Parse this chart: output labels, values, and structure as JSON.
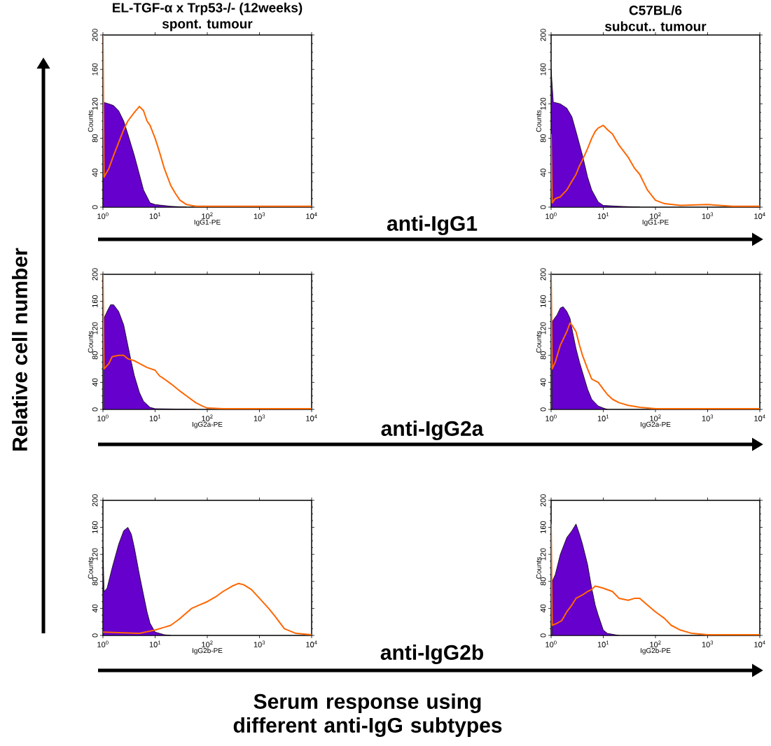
{
  "chart_data": [
    {
      "type": "line",
      "title": "EL-TGF-α x Trp53-/- (12weeks)",
      "subtitle": "spont. tumour",
      "xlabel": "IgG1-PE",
      "ylabel": "Counts",
      "log": "x",
      "xlim": [
        1,
        10000
      ],
      "ylim": [
        0,
        200
      ],
      "xticks": [
        {
          "value": 1,
          "label": "10$^{0}$"
        },
        {
          "value": 10,
          "label": "10$^{1}$"
        },
        {
          "value": 100,
          "label": "10$^{2}$"
        },
        {
          "value": 1000,
          "label": "10$^{3}$"
        },
        {
          "value": 10000,
          "label": "10$^{4}$"
        }
      ],
      "yticks": [
        0,
        40,
        80,
        120,
        160,
        200
      ],
      "marker": "none",
      "series": [
        {
          "type": "area",
          "color": "#6600cc",
          "x": [
            1,
            1.3,
            1.6,
            2,
            2.5,
            3,
            4,
            5,
            6,
            8,
            10,
            20,
            40
          ],
          "values": [
            122,
            120,
            118,
            112,
            100,
            85,
            60,
            38,
            20,
            5,
            3,
            1,
            0
          ]
        },
        {
          "type": "line",
          "color": "#ff6600",
          "x": [
            1,
            1.05,
            1.3,
            1.6,
            2,
            2.5,
            3,
            4,
            5,
            6,
            7,
            8,
            10,
            12,
            15,
            20,
            25,
            30,
            40,
            60,
            100,
            10000
          ],
          "values": [
            200,
            35,
            45,
            60,
            75,
            90,
            100,
            110,
            117,
            112,
            100,
            95,
            80,
            65,
            45,
            25,
            15,
            8,
            3,
            1,
            1,
            1
          ]
        }
      ]
    },
    {
      "type": "line",
      "title": "C57BL/6",
      "subtitle": "subcut.. tumour",
      "xlabel": "IgG1-PE",
      "ylabel": "Counts",
      "log": "x",
      "xlim": [
        1,
        10000
      ],
      "ylim": [
        0,
        200
      ],
      "xticks": [
        {
          "value": 1,
          "label": "10$^{0}$"
        },
        {
          "value": 10,
          "label": "10$^{1}$"
        },
        {
          "value": 100,
          "label": "10$^{2}$"
        },
        {
          "value": 1000,
          "label": "10$^{3}$"
        },
        {
          "value": 10000,
          "label": "10$^{4}$"
        }
      ],
      "yticks": [
        0,
        40,
        80,
        120,
        160,
        200
      ],
      "marker": "none",
      "series": [
        {
          "type": "area",
          "color": "#6600cc",
          "x": [
            1,
            1.1,
            1.5,
            2,
            2.5,
            3,
            4,
            5,
            6,
            8,
            10,
            20,
            50
          ],
          "values": [
            160,
            122,
            120,
            115,
            105,
            88,
            60,
            35,
            20,
            6,
            2,
            1,
            0
          ]
        },
        {
          "type": "line",
          "color": "#ff6600",
          "x": [
            1,
            1.05,
            1.2,
            1.5,
            2,
            2.5,
            3,
            3.5,
            4,
            5,
            6,
            7,
            8,
            10,
            12,
            15,
            20,
            30,
            40,
            50,
            70,
            100,
            150,
            300,
            1000,
            3000,
            10000
          ],
          "values": [
            85,
            5,
            10,
            12,
            20,
            30,
            38,
            48,
            55,
            68,
            80,
            88,
            92,
            95,
            90,
            85,
            72,
            58,
            45,
            38,
            20,
            8,
            4,
            2,
            3,
            1,
            1
          ]
        }
      ]
    },
    {
      "type": "line",
      "xlabel": "IgG2a-PE",
      "ylabel": "Counts",
      "log": "x",
      "xlim": [
        1,
        10000
      ],
      "ylim": [
        0,
        200
      ],
      "xticks": [
        {
          "value": 1,
          "label": "10$^{0}$"
        },
        {
          "value": 10,
          "label": "10$^{1}$"
        },
        {
          "value": 100,
          "label": "10$^{2}$"
        },
        {
          "value": 1000,
          "label": "10$^{3}$"
        },
        {
          "value": 10000,
          "label": "10$^{4}$"
        }
      ],
      "yticks": [
        0,
        40,
        80,
        120,
        160,
        200
      ],
      "marker": "none",
      "series": [
        {
          "type": "area",
          "color": "#6600cc",
          "x": [
            1.05,
            1.2,
            1.4,
            1.6,
            2,
            2.5,
            3,
            3.5,
            4,
            5,
            6,
            8,
            10,
            60
          ],
          "values": [
            135,
            145,
            155,
            155,
            145,
            125,
            95,
            70,
            50,
            25,
            12,
            3,
            1,
            0
          ]
        },
        {
          "type": "line",
          "color": "#ff6600",
          "x": [
            1,
            1.05,
            1.3,
            1.5,
            2,
            2.5,
            3,
            4,
            5,
            7,
            10,
            12,
            15,
            20,
            30,
            40,
            60,
            80,
            100,
            200,
            10000
          ],
          "values": [
            200,
            60,
            68,
            78,
            80,
            80,
            75,
            72,
            68,
            62,
            58,
            50,
            45,
            38,
            27,
            20,
            10,
            5,
            2,
            1,
            1
          ]
        }
      ]
    },
    {
      "type": "line",
      "xlabel": "IgG2a-PE",
      "ylabel": "Counts",
      "log": "x",
      "xlim": [
        1,
        10000
      ],
      "ylim": [
        0,
        200
      ],
      "xticks": [
        {
          "value": 1,
          "label": "10$^{0}$"
        },
        {
          "value": 10,
          "label": "10$^{1}$"
        },
        {
          "value": 100,
          "label": "10$^{2}$"
        },
        {
          "value": 1000,
          "label": "10$^{3}$"
        },
        {
          "value": 10000,
          "label": "10$^{4}$"
        }
      ],
      "yticks": [
        0,
        40,
        80,
        120,
        160,
        200
      ],
      "marker": "none",
      "series": [
        {
          "type": "area",
          "color": "#6600cc",
          "x": [
            1.05,
            1.3,
            1.5,
            1.7,
            2,
            2.3,
            2.5,
            3,
            3.5,
            4,
            5,
            6,
            8,
            10,
            12
          ],
          "values": [
            130,
            140,
            150,
            152,
            145,
            135,
            120,
            90,
            70,
            55,
            30,
            15,
            5,
            2,
            0
          ]
        },
        {
          "type": "line",
          "color": "#ff6600",
          "x": [
            1,
            1.05,
            1.2,
            1.5,
            2,
            2.3,
            2.5,
            3,
            3.5,
            4,
            5,
            6,
            8,
            10,
            12,
            15,
            20,
            30,
            50,
            100,
            200,
            10000
          ],
          "values": [
            200,
            60,
            70,
            95,
            115,
            128,
            125,
            115,
            95,
            80,
            60,
            45,
            40,
            30,
            22,
            15,
            10,
            6,
            3,
            1,
            1,
            1
          ]
        }
      ]
    },
    {
      "type": "line",
      "xlabel": "IgG2b-PE",
      "ylabel": "Counts",
      "log": "x",
      "xlim": [
        1,
        10000
      ],
      "ylim": [
        0,
        200
      ],
      "xticks": [
        {
          "value": 1,
          "label": "10$^{0}$"
        },
        {
          "value": 10,
          "label": "10$^{1}$"
        },
        {
          "value": 100,
          "label": "10$^{2}$"
        },
        {
          "value": 1000,
          "label": "10$^{3}$"
        },
        {
          "value": 10000,
          "label": "10$^{4}$"
        }
      ],
      "yticks": [
        0,
        40,
        80,
        120,
        160,
        200
      ],
      "marker": "none",
      "series": [
        {
          "type": "area",
          "color": "#6600cc",
          "x": [
            1,
            1.05,
            1.2,
            1.5,
            2,
            2.5,
            3,
            3.5,
            4,
            5,
            6,
            7,
            8,
            10,
            15,
            20
          ],
          "values": [
            130,
            65,
            70,
            100,
            135,
            155,
            160,
            150,
            130,
            90,
            60,
            35,
            18,
            5,
            1,
            0
          ]
        },
        {
          "type": "line",
          "color": "#ff6600",
          "x": [
            1,
            5,
            10,
            15,
            20,
            30,
            50,
            70,
            100,
            150,
            200,
            300,
            400,
            500,
            700,
            1000,
            1500,
            2000,
            3000,
            5000,
            10000
          ],
          "values": [
            5,
            3,
            8,
            12,
            15,
            25,
            40,
            45,
            50,
            58,
            65,
            73,
            77,
            75,
            68,
            55,
            40,
            28,
            10,
            3,
            1
          ]
        }
      ]
    },
    {
      "type": "line",
      "xlabel": "IgG2b-PE",
      "ylabel": "Counts",
      "log": "x",
      "xlim": [
        1,
        10000
      ],
      "ylim": [
        0,
        200
      ],
      "xticks": [
        {
          "value": 1,
          "label": "10$^{0}$"
        },
        {
          "value": 10,
          "label": "10$^{1}$"
        },
        {
          "value": 100,
          "label": "10$^{2}$"
        },
        {
          "value": 1000,
          "label": "10$^{3}$"
        },
        {
          "value": 10000,
          "label": "10$^{4}$"
        }
      ],
      "yticks": [
        0,
        40,
        80,
        120,
        160,
        200
      ],
      "marker": "none",
      "series": [
        {
          "type": "area",
          "color": "#6600cc",
          "x": [
            1.05,
            1.2,
            1.5,
            2,
            2.5,
            3,
            3.5,
            4,
            5,
            6,
            7,
            8,
            10,
            12,
            20
          ],
          "values": [
            80,
            90,
            120,
            145,
            155,
            165,
            150,
            135,
            105,
            70,
            45,
            30,
            8,
            3,
            0
          ]
        },
        {
          "type": "line",
          "color": "#ff6600",
          "x": [
            1,
            1.05,
            1.3,
            1.6,
            2,
            2.5,
            3,
            4,
            5,
            6,
            7,
            8,
            10,
            15,
            20,
            30,
            40,
            50,
            70,
            100,
            150,
            200,
            300,
            500,
            1000,
            10000
          ],
          "values": [
            165,
            15,
            18,
            22,
            35,
            45,
            55,
            60,
            65,
            68,
            73,
            72,
            70,
            65,
            55,
            52,
            55,
            55,
            45,
            35,
            25,
            15,
            8,
            3,
            1,
            1
          ]
        }
      ]
    },
    {
      "type": "other",
      "annotations": [
        "Relative cell number",
        "anti-IgG1",
        "anti-IgG2a",
        "anti-IgG2b",
        "Serum response using different anti-IgG subtypes"
      ]
    }
  ]
}
